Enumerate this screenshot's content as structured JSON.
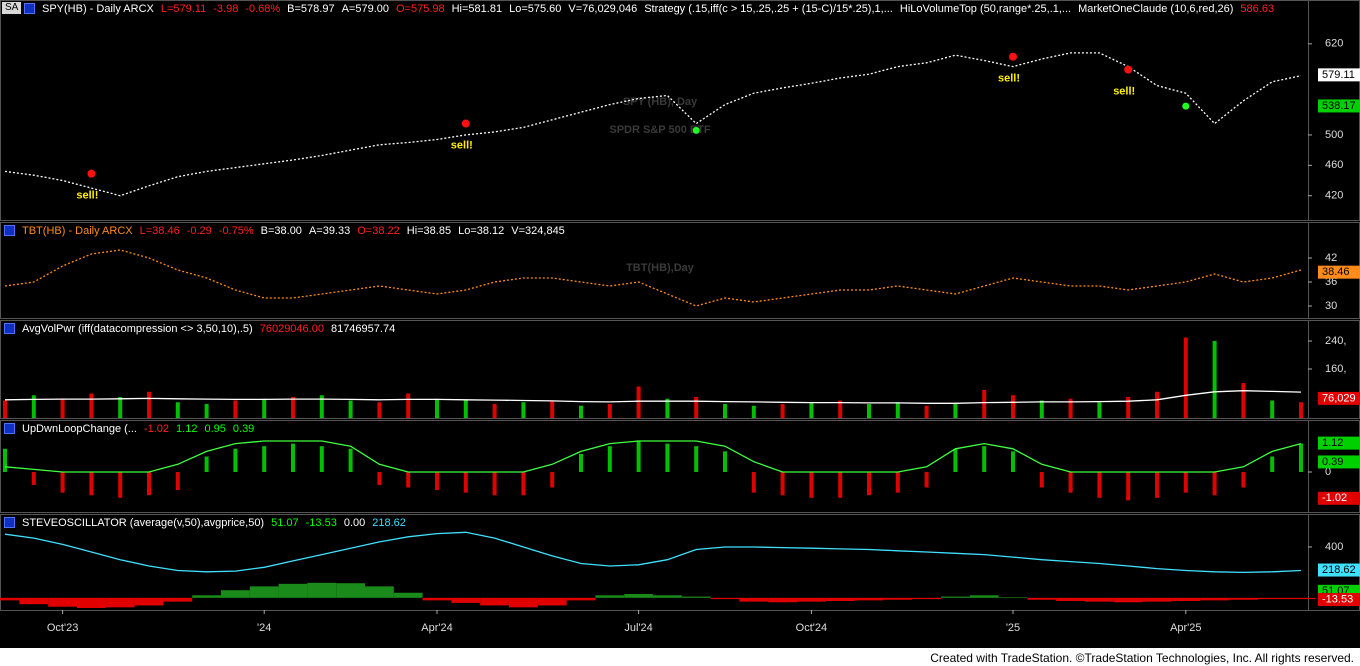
{
  "corner": "SA",
  "footer": "Created with TradeStation. ©TradeStation Technologies, Inc. All rights reserved.",
  "chart_data": [
    {
      "type": "line",
      "color": "#ffffff",
      "dotted": true,
      "header": [
        {
          "text": "SPY(HB) - Daily  ARCX",
          "color": "#ffffff"
        },
        {
          "text": "L=579.11",
          "color": "#ff2020"
        },
        {
          "text": "-3.98",
          "color": "#ff2020"
        },
        {
          "text": "-0.68%",
          "color": "#ff2020"
        },
        {
          "text": "B=578.97",
          "color": "#ffffff"
        },
        {
          "text": "A=579.00",
          "color": "#ffffff"
        },
        {
          "text": "O=575.98",
          "color": "#ff2020"
        },
        {
          "text": "Hi=581.81",
          "color": "#ffffff"
        },
        {
          "text": "Lo=575.60",
          "color": "#ffffff"
        },
        {
          "text": "V=76,029,046",
          "color": "#ffffff"
        },
        {
          "text": "Strategy (.15,iff(c > 15,.25,.25 + (15-C)/15*.25),1,...",
          "color": "#ffffff"
        },
        {
          "text": "HiLoVolumeTop (50,range*.25,.1,...",
          "color": "#ffffff"
        },
        {
          "text": "MarketOneClaude (10,6,red,26)",
          "color": "#ffffff"
        },
        {
          "text": "586.63",
          "color": "#ff2020"
        }
      ],
      "watermark": [
        "SPY (HB), Day",
        "SPDR S&P 500 ETF"
      ],
      "values": [
        452,
        447,
        440,
        430,
        420,
        433,
        445,
        452,
        457,
        462,
        467,
        473,
        480,
        487,
        490,
        494,
        500,
        504,
        510,
        520,
        530,
        540,
        548,
        552,
        515,
        540,
        555,
        562,
        568,
        575,
        580,
        590,
        595,
        605,
        598,
        590,
        600,
        608,
        608,
        590,
        565,
        555,
        515,
        545,
        570,
        578
      ],
      "ylim": [
        388,
        654
      ],
      "yticks": [
        420,
        460,
        500,
        620
      ],
      "tags": [
        {
          "value": 579.11,
          "color": "#ffffff"
        },
        {
          "value": 538.17,
          "color": "#00d000"
        }
      ],
      "signals": [
        {
          "label": "sell!",
          "index": 3,
          "price": 449
        },
        {
          "label": "sell!",
          "index": 16,
          "price": 515
        },
        {
          "label": "sell!",
          "index": 35,
          "price": 603
        },
        {
          "label": "sell!",
          "index": 39,
          "price": 586
        }
      ],
      "markers": [
        {
          "index": 24,
          "price": 506
        },
        {
          "index": 41,
          "price": 538
        }
      ]
    },
    {
      "type": "line",
      "color": "#ff8c1a",
      "dotted": true,
      "header": [
        {
          "text": "TBT(HB) - Daily  ARCX",
          "color": "#ff8c1a"
        },
        {
          "text": "L=38.46",
          "color": "#ff2020"
        },
        {
          "text": "-0.29",
          "color": "#ff2020"
        },
        {
          "text": "-0.75%",
          "color": "#ff2020"
        },
        {
          "text": "B=38.00",
          "color": "#ffffff"
        },
        {
          "text": "A=39.33",
          "color": "#ffffff"
        },
        {
          "text": "O=38.22",
          "color": "#ff2020"
        },
        {
          "text": "Hi=38.85",
          "color": "#ffffff"
        },
        {
          "text": "Lo=38.12",
          "color": "#ffffff"
        },
        {
          "text": "V=324,845",
          "color": "#ffffff"
        }
      ],
      "watermark": [
        "TBT(HB),Day"
      ],
      "values": [
        35,
        36,
        40,
        43,
        44,
        42,
        39,
        37,
        34,
        32,
        32,
        33,
        34,
        35,
        34,
        33,
        34,
        36,
        37,
        37,
        36,
        35,
        36,
        33,
        30,
        32,
        31,
        32,
        33,
        34,
        34,
        35,
        34,
        33,
        35,
        37,
        36,
        35,
        35,
        34,
        35,
        36,
        38,
        36,
        37,
        39
      ],
      "ylim": [
        27,
        51
      ],
      "yticks": [
        30,
        36,
        42
      ],
      "tags": [
        {
          "value": 38.46,
          "color": "#ff8c1a"
        }
      ]
    },
    {
      "type": "bar",
      "header": [
        {
          "text": "AvgVolPwr (iff(datacompression <> 3,50,10),.5)",
          "color": "#ffffff"
        },
        {
          "text": "76029046.00",
          "color": "#ff2020"
        },
        {
          "text": "81746957.74",
          "color": "#ffffff"
        }
      ],
      "values": [
        70,
        85,
        75,
        90,
        80,
        95,
        65,
        60,
        70,
        75,
        80,
        85,
        70,
        65,
        90,
        75,
        70,
        60,
        65,
        70,
        55,
        60,
        110,
        75,
        80,
        60,
        55,
        60,
        65,
        70,
        60,
        65,
        55,
        60,
        100,
        85,
        70,
        75,
        65,
        80,
        95,
        250,
        240,
        120,
        70,
        65
      ],
      "colors": [
        "#e00000",
        "#00c000",
        "#e00000",
        "#e00000",
        "#00c000",
        "#e00000",
        "#00c000",
        "#00c000",
        "#e00000",
        "#00c000",
        "#e00000",
        "#00c000",
        "#00c000",
        "#e00000",
        "#e00000",
        "#00c000",
        "#00c000",
        "#e00000",
        "#00c000",
        "#e00000",
        "#00c000",
        "#e00000",
        "#e00000",
        "#00c000",
        "#e00000",
        "#00c000",
        "#00c000",
        "#e00000",
        "#00c000",
        "#e00000",
        "#00c000",
        "#00c000",
        "#e00000",
        "#00c000",
        "#e00000",
        "#e00000",
        "#00c000",
        "#e00000",
        "#00c000",
        "#e00000",
        "#e00000",
        "#e00000",
        "#00c000",
        "#e00000",
        "#00c000",
        "#e00000"
      ],
      "line_values": [
        72,
        73,
        74,
        74,
        75,
        76,
        75,
        74,
        73,
        73,
        74,
        74,
        73,
        72,
        73,
        73,
        72,
        71,
        70,
        69,
        67,
        66,
        68,
        68,
        68,
        67,
        66,
        65,
        64,
        64,
        63,
        63,
        62,
        62,
        64,
        65,
        66,
        66,
        67,
        68,
        72,
        85,
        95,
        98,
        96,
        94
      ],
      "line_color": "#ffffff",
      "ylim": [
        20,
        260
      ],
      "yticks": [
        {
          "value": 160,
          "label": "160,"
        },
        {
          "value": 240,
          "label": "240,"
        }
      ],
      "tags": [
        {
          "value": 76.029,
          "label": "76,029",
          "color": "#e00000"
        }
      ]
    },
    {
      "type": "bar",
      "up_color": "#00c000",
      "down_color": "#e00000",
      "header": [
        {
          "text": "UpDwnLoopChange (...",
          "color": "#ffffff"
        },
        {
          "text": "-1.02",
          "color": "#ff2020"
        },
        {
          "text": "1.12",
          "color": "#00ff00"
        },
        {
          "text": "0.95",
          "color": "#00ff00"
        },
        {
          "text": "0.39",
          "color": "#00ff00"
        }
      ],
      "values": [
        0.9,
        -0.5,
        -0.8,
        -0.9,
        -1.0,
        -0.9,
        -0.7,
        0.6,
        0.9,
        1.0,
        1.1,
        1.0,
        0.9,
        -0.5,
        -0.6,
        -0.7,
        -0.8,
        -0.9,
        -0.9,
        -0.6,
        0.7,
        1.0,
        1.2,
        1.1,
        1.0,
        0.8,
        -0.8,
        -0.9,
        -1.0,
        -1.0,
        -0.9,
        -0.8,
        -0.6,
        0.9,
        1.0,
        0.8,
        -0.6,
        -0.8,
        -1.0,
        -1.1,
        -1.0,
        -0.8,
        -0.9,
        -0.6,
        0.6,
        1.1
      ],
      "line_values": [
        0.2,
        0.1,
        0,
        0,
        0,
        0,
        0.3,
        0.8,
        1.1,
        1.2,
        1.2,
        1.2,
        1.0,
        0.3,
        0,
        0,
        0,
        0,
        0,
        0.3,
        0.8,
        1.1,
        1.2,
        1.2,
        1.2,
        1.0,
        0.4,
        0,
        0,
        0,
        0,
        0,
        0.2,
        0.9,
        1.1,
        0.9,
        0.3,
        0,
        0,
        0,
        0,
        0,
        0,
        0.2,
        0.8,
        1.1
      ],
      "line_color": "#40ff40",
      "ylim": [
        -1.55,
        1.55
      ],
      "yticks": [
        0
      ],
      "tags": [
        {
          "value": 1.12,
          "color": "#00d000"
        },
        {
          "value": 0.39,
          "color": "#00d000"
        },
        {
          "value": -1.02,
          "color": "#e00000"
        }
      ]
    },
    {
      "type": "area",
      "up_color": "#1a8a1a",
      "down_color": "#e00000",
      "header": [
        {
          "text": "STEVEOSCILLATOR (average(v,50),avgprice,50)",
          "color": "#ffffff"
        },
        {
          "text": "51.07",
          "color": "#00ff00"
        },
        {
          "text": "-13.53",
          "color": "#00ff00"
        },
        {
          "text": "0.00",
          "color": "#ffffff"
        },
        {
          "text": "218.62",
          "color": "#40e0ff"
        }
      ],
      "values": [
        -20,
        -50,
        -70,
        -80,
        -75,
        -60,
        -30,
        20,
        60,
        90,
        110,
        118,
        115,
        90,
        40,
        -20,
        -40,
        -60,
        -75,
        -60,
        -20,
        20,
        30,
        20,
        10,
        -10,
        -30,
        -35,
        -30,
        -25,
        -20,
        -15,
        -10,
        10,
        20,
        5,
        -15,
        -25,
        -30,
        -35,
        -30,
        -25,
        -20,
        -15,
        -10,
        -10
      ],
      "line_values": [
        500,
        470,
        420,
        360,
        300,
        250,
        215,
        205,
        210,
        240,
        290,
        340,
        390,
        440,
        480,
        505,
        515,
        470,
        400,
        330,
        270,
        250,
        260,
        300,
        380,
        400,
        400,
        395,
        390,
        385,
        380,
        370,
        360,
        350,
        340,
        320,
        300,
        285,
        270,
        250,
        230,
        215,
        205,
        200,
        205,
        215
      ],
      "line_color": "#40e0ff",
      "ylim": [
        -80,
        612
      ],
      "yticks": [
        400
      ],
      "tags": [
        {
          "value": 218.62,
          "color": "#40e0ff"
        },
        {
          "value": 51.07,
          "color": "#00d000"
        },
        {
          "value": -13.53,
          "color": "#e00000"
        }
      ],
      "categories": [
        null,
        null,
        "Oct'23",
        null,
        null,
        null,
        null,
        null,
        null,
        "'24",
        null,
        null,
        null,
        null,
        null,
        "Apr'24",
        null,
        null,
        null,
        null,
        null,
        null,
        "Jul'24",
        null,
        null,
        null,
        null,
        null,
        "Oct'24",
        null,
        null,
        null,
        null,
        null,
        null,
        "'25",
        null,
        null,
        null,
        null,
        null,
        "Apr'25",
        null,
        null,
        null,
        null
      ]
    }
  ]
}
